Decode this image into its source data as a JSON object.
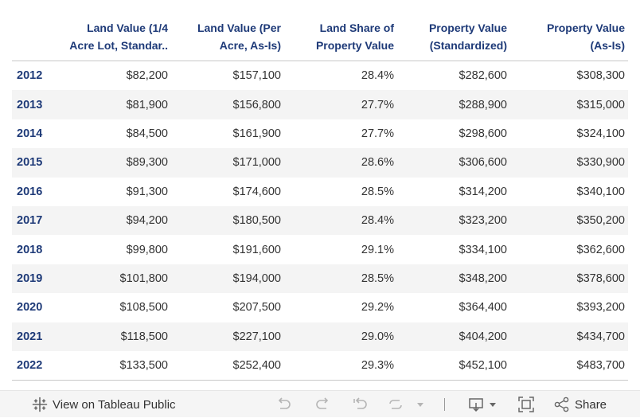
{
  "table": {
    "headers": [
      "",
      "Land Value  (1/4\nAcre Lot, Standar..",
      "Land Value  (Per\nAcre, As-Is)",
      "Land Share of\nProperty Value",
      "Property Value\n(Standardized)",
      "Property Value\n(As-Is)"
    ],
    "rows": [
      [
        "2012",
        "$82,200",
        "$157,100",
        "28.4%",
        "$282,600",
        "$308,300"
      ],
      [
        "2013",
        "$81,900",
        "$156,800",
        "27.7%",
        "$288,900",
        "$315,000"
      ],
      [
        "2014",
        "$84,500",
        "$161,900",
        "27.7%",
        "$298,600",
        "$324,100"
      ],
      [
        "2015",
        "$89,300",
        "$171,000",
        "28.6%",
        "$306,600",
        "$330,900"
      ],
      [
        "2016",
        "$91,300",
        "$174,600",
        "28.5%",
        "$314,200",
        "$340,100"
      ],
      [
        "2017",
        "$94,200",
        "$180,500",
        "28.4%",
        "$323,200",
        "$350,200"
      ],
      [
        "2018",
        "$99,800",
        "$191,600",
        "29.1%",
        "$334,100",
        "$362,600"
      ],
      [
        "2019",
        "$101,800",
        "$194,000",
        "28.5%",
        "$348,200",
        "$378,600"
      ],
      [
        "2020",
        "$108,500",
        "$207,500",
        "29.2%",
        "$364,400",
        "$393,200"
      ],
      [
        "2021",
        "$118,500",
        "$227,100",
        "29.0%",
        "$404,200",
        "$434,700"
      ],
      [
        "2022",
        "$133,500",
        "$252,400",
        "29.3%",
        "$452,100",
        "$483,700"
      ]
    ]
  },
  "toolbar": {
    "view_label": "View on Tableau Public",
    "share_label": "Share",
    "icons": [
      "tableau-logo-icon",
      "undo-icon",
      "redo-icon",
      "revert-icon",
      "refresh-icon",
      "pause-dropdown-icon",
      "download-icon",
      "fullscreen-icon",
      "share-icon"
    ]
  },
  "colors": {
    "header_text": "#1e3a78",
    "year_text": "#1e3a78",
    "stripe": "#f4f4f4",
    "toolbar_bg": "#f5f5f5"
  }
}
